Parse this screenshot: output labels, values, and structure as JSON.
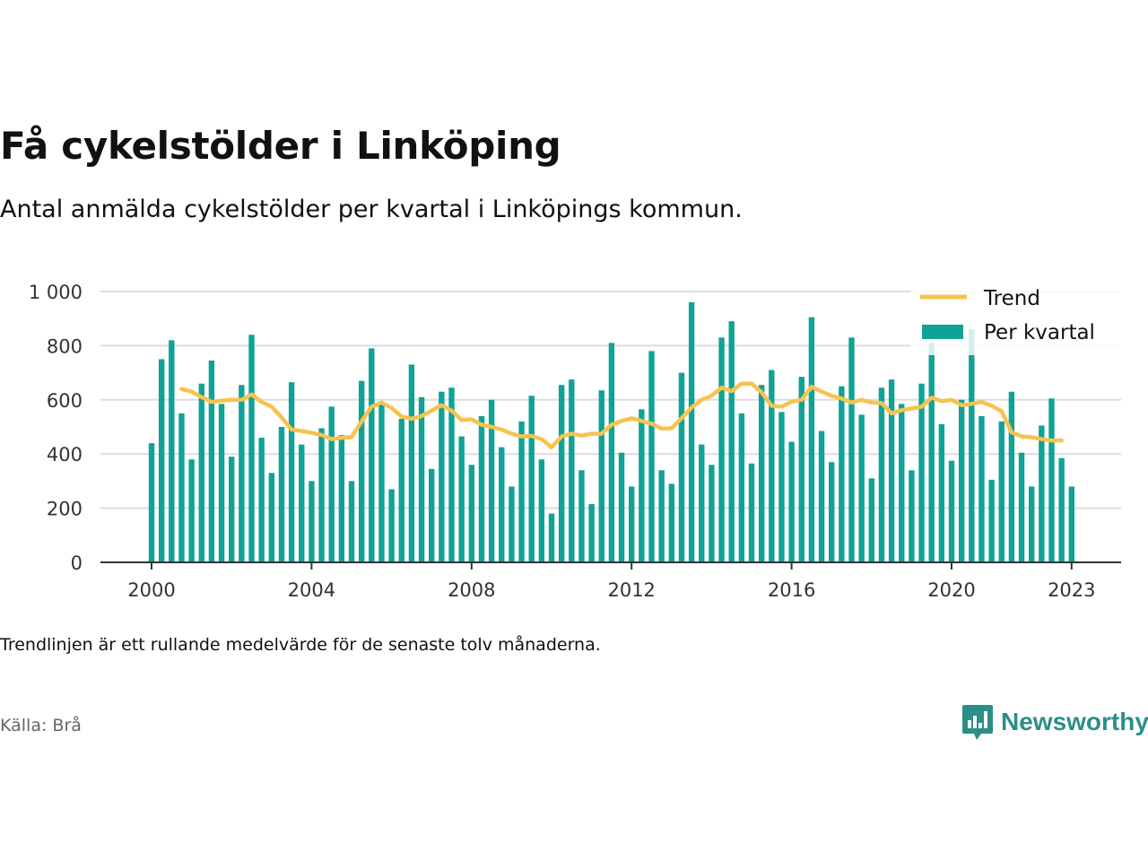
{
  "header": {
    "title": "Få cykelstölder i Linköping",
    "subtitle": "Antal anmälda cykelstölder per kvartal i Linköpings kommun."
  },
  "footer": {
    "note": "Trendlinjen är ett rullande medelvärde för de senaste tolv månaderna.",
    "source": "Källa: Brå",
    "brand": "Newsworthy"
  },
  "colors": {
    "bars": "#10a296",
    "trend": "#f6c34f",
    "grid": "#dddddd",
    "brand": "#2b8f88"
  },
  "chart_data": {
    "type": "bar",
    "title": "Få cykelstölder i Linköping",
    "subtitle": "Antal anmälda cykelstölder per kvartal i Linköpings kommun.",
    "x_unit": "quarter",
    "ylim": [
      0,
      1000
    ],
    "y_ticks": [
      0,
      200,
      400,
      600,
      800,
      1000
    ],
    "y_tick_labels": [
      "0",
      "200",
      "400",
      "600",
      "800",
      "1 000"
    ],
    "x_tick_years": [
      2000,
      2004,
      2008,
      2012,
      2016,
      2020,
      2023
    ],
    "x_tick_labels": [
      "2000",
      "2004",
      "2008",
      "2012",
      "2016",
      "2020",
      "2023"
    ],
    "grid": true,
    "legend_position": "top-right",
    "series": [
      {
        "name": "Per kvartal",
        "type": "bar",
        "start": "2000 Q1",
        "values": [
          440,
          750,
          820,
          550,
          380,
          660,
          745,
          585,
          390,
          655,
          840,
          460,
          330,
          500,
          665,
          435,
          300,
          495,
          575,
          470,
          300,
          670,
          790,
          590,
          270,
          530,
          730,
          610,
          345,
          630,
          645,
          465,
          360,
          540,
          600,
          425,
          280,
          520,
          615,
          380,
          180,
          655,
          675,
          340,
          215,
          635,
          810,
          405,
          280,
          565,
          780,
          340,
          290,
          700,
          960,
          435,
          360,
          830,
          890,
          550,
          365,
          655,
          710,
          555,
          445,
          685,
          905,
          485,
          370,
          650,
          830,
          545,
          310,
          645,
          675,
          585,
          340,
          660,
          810,
          510,
          375,
          600,
          860,
          540,
          305,
          520,
          630,
          405,
          280,
          505,
          605,
          385,
          280
        ]
      },
      {
        "name": "Trend",
        "type": "line",
        "start": "2000 Q4",
        "values": [
          640,
          630,
          610,
          592,
          597,
          600,
          600,
          620,
          592,
          575,
          535,
          490,
          485,
          478,
          470,
          455,
          460,
          463,
          520,
          575,
          590,
          570,
          538,
          530,
          540,
          560,
          580,
          560,
          525,
          528,
          508,
          500,
          490,
          475,
          465,
          467,
          455,
          425,
          465,
          475,
          468,
          475,
          475,
          508,
          522,
          532,
          522,
          512,
          494,
          495,
          532,
          572,
          600,
          615,
          645,
          632,
          660,
          660,
          628,
          578,
          575,
          593,
          600,
          648,
          630,
          615,
          605,
          590,
          600,
          590,
          588,
          550,
          562,
          568,
          575,
          608,
          595,
          600,
          580,
          585,
          592,
          578,
          558,
          480,
          465,
          462,
          455,
          450,
          450
        ]
      }
    ]
  }
}
